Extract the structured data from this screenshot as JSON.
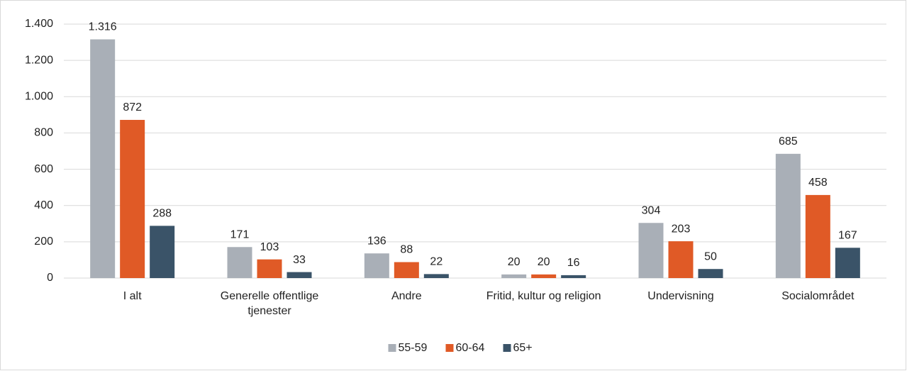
{
  "chart_data": {
    "type": "bar",
    "categories": [
      "I alt",
      "Generelle offentlige tjenester",
      "Andre",
      "Fritid, kultur og religion",
      "Undervisning",
      "Socialområdet"
    ],
    "series": [
      {
        "name": "55-59",
        "color": "#a9afb7",
        "values": [
          1316,
          171,
          136,
          20,
          304,
          685
        ],
        "value_labels": [
          "1.316",
          "171",
          "136",
          "20",
          "304",
          "685"
        ]
      },
      {
        "name": "60-64",
        "color": "#e05a26",
        "values": [
          872,
          103,
          88,
          20,
          203,
          458
        ],
        "value_labels": [
          "872",
          "103",
          "88",
          "20",
          "203",
          "458"
        ]
      },
      {
        "name": "65+",
        "color": "#3a5368",
        "values": [
          288,
          33,
          22,
          16,
          50,
          167
        ],
        "value_labels": [
          "288",
          "33",
          "22",
          "16",
          "50",
          "167"
        ]
      }
    ],
    "ylim": [
      0,
      1400
    ],
    "yticks": [
      0,
      200,
      400,
      600,
      800,
      {
        "value": 1000,
        "label": "1.000"
      },
      {
        "value": 1200,
        "label": "1.200"
      },
      {
        "value": 1400,
        "label": "1.400"
      }
    ],
    "grid": true,
    "legend": "bottom"
  }
}
